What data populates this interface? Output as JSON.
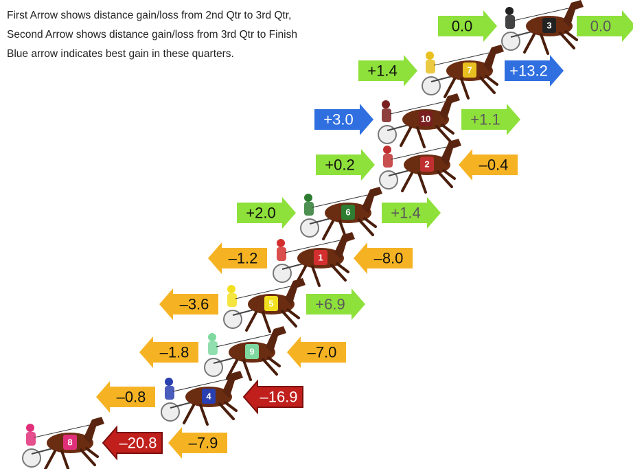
{
  "header": {
    "lines": [
      "First Arrow shows distance gain/loss from 2nd Qtr to 3rd Qtr,",
      "Second Arrow shows distance gain/loss from 3rd Qtr to Finish",
      "Blue arrow indicates best gain in these quarters."
    ]
  },
  "rows": [
    {
      "horse": "3",
      "cloth": "#222222",
      "first": {
        "label": "0.0",
        "color": "#8ee03b"
      },
      "second": {
        "label": "0.0",
        "color": "#8ee03b"
      }
    },
    {
      "horse": "7",
      "cloth": "#e8c020",
      "first": {
        "label": "+1.4",
        "color": "#8ee03b"
      },
      "second": {
        "label": "+13.2",
        "color": "#2f6fe0"
      }
    },
    {
      "horse": "10",
      "cloth": "#7a1f1f",
      "first": {
        "label": "+3.0",
        "color": "#2f6fe0"
      },
      "second": {
        "label": "+1.1",
        "color": "#8ee03b"
      }
    },
    {
      "horse": "2",
      "cloth": "#c03030",
      "first": {
        "label": "+0.2",
        "color": "#8ee03b"
      },
      "second": {
        "label": "–0.4",
        "color": "#f5b324"
      }
    },
    {
      "horse": "6",
      "cloth": "#2e7d32",
      "first": {
        "label": "+2.0",
        "color": "#8ee03b"
      },
      "second": {
        "label": "+1.4",
        "color": "#8ee03b"
      }
    },
    {
      "horse": "1",
      "cloth": "#d32f2f",
      "first": {
        "label": "–1.2",
        "color": "#f5b324"
      },
      "second": {
        "label": "–8.0",
        "color": "#f5b324"
      }
    },
    {
      "horse": "5",
      "cloth": "#f2e020",
      "first": {
        "label": "–3.6",
        "color": "#f5b324"
      },
      "second": {
        "label": "+6.9",
        "color": "#8ee03b"
      }
    },
    {
      "horse": "9",
      "cloth": "#7ed9a0",
      "first": {
        "label": "–1.8",
        "color": "#f5b324"
      },
      "second": {
        "label": "–7.0",
        "color": "#f5b324"
      }
    },
    {
      "horse": "4",
      "cloth": "#2a3fb0",
      "first": {
        "label": "–0.8",
        "color": "#f5b324"
      },
      "second": {
        "label": "–16.9",
        "color": "#c01f1c"
      }
    },
    {
      "horse": "8",
      "cloth": "#e0307a",
      "first": {
        "label": "–20.8",
        "color": "#c01f1c"
      },
      "second": {
        "label": "–7.9",
        "color": "#f5b324"
      }
    }
  ]
}
